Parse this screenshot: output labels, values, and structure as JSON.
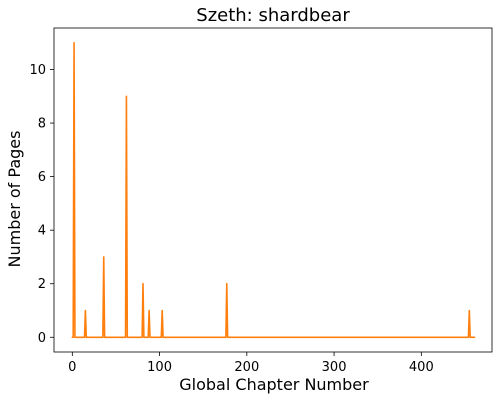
{
  "chart_data": {
    "type": "line",
    "title": "Szeth: shardbear",
    "xlabel": "Global Chapter Number",
    "ylabel": "Number of Pages",
    "xlim": [
      -21,
      481
    ],
    "ylim": [
      -0.55,
      11.55
    ],
    "xticks": [
      0,
      100,
      200,
      300,
      400
    ],
    "yticks": [
      0,
      2,
      4,
      6,
      8,
      10
    ],
    "grid": false,
    "series": [
      {
        "name": "shardbear",
        "color": "#ff7f0e",
        "x": [
          0,
          1,
          2,
          3,
          14,
          15,
          16,
          35,
          36,
          37,
          61,
          62,
          63,
          80,
          81,
          82,
          87,
          88,
          89,
          102,
          103,
          104,
          176,
          177,
          178,
          454,
          455,
          456,
          461
        ],
        "y": [
          0,
          0,
          11,
          0,
          0,
          1,
          0,
          0,
          3,
          0,
          0,
          9,
          0,
          0,
          2,
          0,
          0,
          1,
          0,
          0,
          1,
          0,
          0,
          2,
          0,
          0,
          1,
          0,
          0
        ]
      }
    ]
  }
}
